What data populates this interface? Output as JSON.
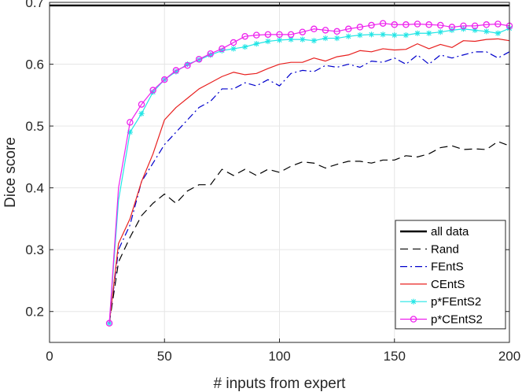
{
  "chart_data": {
    "type": "line",
    "title": "",
    "xlabel": "# inputs from expert",
    "ylabel": "Dice score",
    "xlim": [
      0,
      200
    ],
    "ylim": [
      0.15,
      0.7
    ],
    "xticks": [
      0,
      50,
      100,
      150,
      200
    ],
    "xtick_labels": [
      "0",
      "50",
      "100",
      "150",
      "200"
    ],
    "yticks": [
      0.2,
      0.3,
      0.4,
      0.5,
      0.6,
      0.7
    ],
    "ytick_labels": [
      "0.2",
      "0.3",
      "0.4",
      "0.5",
      "0.6",
      "0.7"
    ],
    "grid": true,
    "legend_position": "bottom-right",
    "x": [
      26,
      30,
      35,
      40,
      45,
      50,
      55,
      60,
      65,
      70,
      75,
      80,
      85,
      90,
      95,
      100,
      105,
      110,
      115,
      120,
      125,
      130,
      135,
      140,
      145,
      150,
      155,
      160,
      165,
      170,
      175,
      180,
      185,
      190,
      195,
      200
    ],
    "series": [
      {
        "name": "all data",
        "color": "#000000",
        "style": "solid",
        "marker": "none",
        "x": [
          0,
          200
        ],
        "values": [
          0.695,
          0.695
        ]
      },
      {
        "name": "Rand",
        "color": "#000000",
        "style": "dashed",
        "marker": "none",
        "values": [
          0.181,
          0.28,
          0.32,
          0.355,
          0.375,
          0.39,
          0.375,
          0.395,
          0.405,
          0.405,
          0.43,
          0.42,
          0.43,
          0.42,
          0.43,
          0.425,
          0.435,
          0.442,
          0.44,
          0.432,
          0.438,
          0.443,
          0.443,
          0.44,
          0.445,
          0.445,
          0.452,
          0.45,
          0.455,
          0.465,
          0.468,
          0.462,
          0.463,
          0.462,
          0.475,
          0.468
        ]
      },
      {
        "name": "FEntS",
        "color": "#0000cc",
        "style": "dashdot",
        "marker": "none",
        "values": [
          0.181,
          0.3,
          0.34,
          0.41,
          0.44,
          0.47,
          0.49,
          0.51,
          0.53,
          0.54,
          0.56,
          0.56,
          0.57,
          0.565,
          0.575,
          0.565,
          0.585,
          0.59,
          0.588,
          0.598,
          0.595,
          0.6,
          0.595,
          0.605,
          0.603,
          0.61,
          0.6,
          0.615,
          0.6,
          0.615,
          0.61,
          0.615,
          0.62,
          0.62,
          0.61,
          0.62
        ]
      },
      {
        "name": "CEntS",
        "color": "#e8201f",
        "style": "solid",
        "marker": "none",
        "values": [
          0.181,
          0.31,
          0.35,
          0.41,
          0.455,
          0.51,
          0.53,
          0.545,
          0.56,
          0.57,
          0.58,
          0.587,
          0.583,
          0.585,
          0.593,
          0.6,
          0.603,
          0.603,
          0.61,
          0.605,
          0.612,
          0.615,
          0.622,
          0.62,
          0.625,
          0.623,
          0.624,
          0.633,
          0.625,
          0.632,
          0.627,
          0.638,
          0.637,
          0.64,
          0.641,
          0.638
        ]
      },
      {
        "name": "p*FEntS2",
        "color": "#22e5e5",
        "style": "solid",
        "marker": "star",
        "values": [
          0.181,
          0.38,
          0.49,
          0.52,
          0.555,
          0.575,
          0.588,
          0.6,
          0.607,
          0.615,
          0.622,
          0.625,
          0.628,
          0.633,
          0.637,
          0.639,
          0.64,
          0.64,
          0.638,
          0.642,
          0.642,
          0.645,
          0.647,
          0.648,
          0.648,
          0.647,
          0.647,
          0.65,
          0.65,
          0.652,
          0.655,
          0.657,
          0.655,
          0.653,
          0.65,
          0.658
        ]
      },
      {
        "name": "p*CEntS2",
        "color": "#ee22ee",
        "style": "solid",
        "marker": "circle",
        "values": [
          0.181,
          0.4,
          0.506,
          0.535,
          0.558,
          0.575,
          0.59,
          0.598,
          0.608,
          0.617,
          0.625,
          0.635,
          0.645,
          0.647,
          0.648,
          0.648,
          0.648,
          0.652,
          0.657,
          0.655,
          0.653,
          0.657,
          0.66,
          0.663,
          0.666,
          0.664,
          0.664,
          0.665,
          0.664,
          0.663,
          0.66,
          0.662,
          0.662,
          0.664,
          0.665,
          0.662
        ]
      }
    ]
  }
}
